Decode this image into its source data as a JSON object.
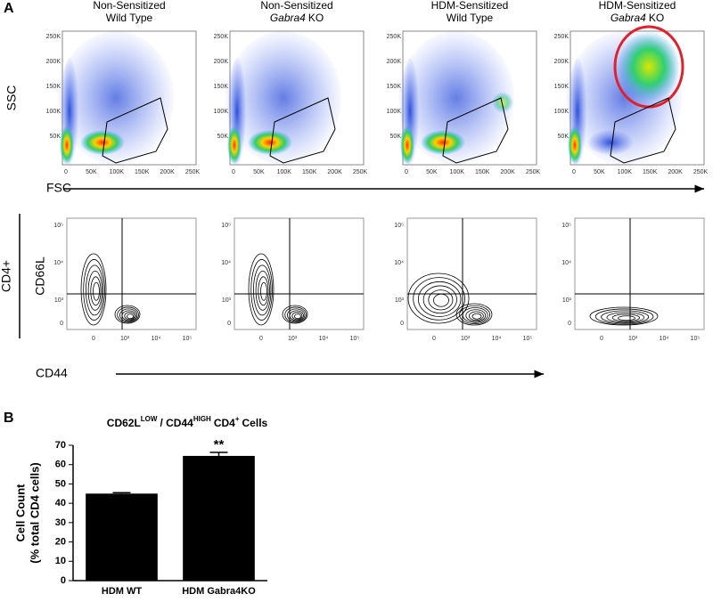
{
  "panel_a": {
    "letter": "A",
    "titles": [
      {
        "line1": "Non-Sensitized",
        "line2": "Wild Type"
      },
      {
        "line1": "Non-Sensitized",
        "gene": "Gabra4",
        "suffix": "KO"
      },
      {
        "line1": "HDM-Sensitized",
        "line2": "Wild Type"
      },
      {
        "line1": "HDM-Sensitized",
        "gene": "Gabra4",
        "suffix": "KO"
      }
    ],
    "scatter_y_label": "SSC",
    "scatter_x_label": "FSC",
    "scatter_yticks": [
      "250K",
      "200K",
      "150K",
      "100K",
      "50K"
    ],
    "scatter_xticks": [
      "0",
      "50K",
      "100K",
      "150K",
      "200K",
      "250K"
    ],
    "row_label": "CD4+",
    "contour_y_label": "CD66L",
    "contour_x_label": "CD44",
    "contour_yticks": [
      "10⁵",
      "10⁴",
      "10³",
      "0"
    ],
    "contour_xticks": [
      "0",
      "10³",
      "10⁴",
      "10⁵"
    ]
  },
  "panel_b": {
    "letter": "B"
  },
  "chart_data": {
    "type": "bar",
    "title": [
      "CD62L",
      "LOW",
      "/ CD44",
      "HIGH",
      "CD4",
      "+",
      "Cells"
    ],
    "y_label": [
      "Cell Count",
      "(% total CD4 cells)"
    ],
    "categories": [
      "HDM WT",
      "HDM Gabra4KO"
    ],
    "values": [
      45,
      64.5
    ],
    "errors": [
      0.5,
      1.8
    ],
    "color": "#000000",
    "annotations": [
      null,
      "**"
    ],
    "ylim": [
      0,
      70
    ],
    "yticks": [
      0,
      10,
      20,
      30,
      40,
      50,
      60,
      70
    ]
  }
}
